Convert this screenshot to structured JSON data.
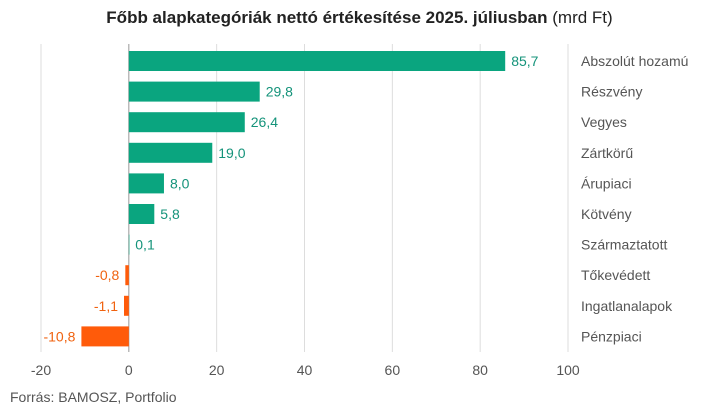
{
  "title": "Főbb alapkategóriák nettó értékesítése 2025. júliusban",
  "title_unit": "(mrd Ft)",
  "source": "Forrás: BAMOSZ, Portfolio",
  "colors": {
    "positive": "#0aa57f",
    "negative": "#ff5b0a",
    "positive_label": "#14937a",
    "negative_label": "#f0620f",
    "grid": "#dddddd",
    "zero_line": "#999999",
    "text": "#555555"
  },
  "chart_data": {
    "type": "bar",
    "orientation": "horizontal",
    "title": "Főbb alapkategóriák nettó értékesítése 2025. júliusban (mrd Ft)",
    "categories": [
      "Abszolút hozamú",
      "Részvény",
      "Vegyes",
      "Zártkörű",
      "Árupiaci",
      "Kötvény",
      "Származtatott",
      "Tőkevédett",
      "Ingatlanalapok",
      "Pénzpiaci"
    ],
    "values": [
      85.7,
      29.8,
      26.4,
      19.0,
      8.0,
      5.8,
      0.1,
      -0.8,
      -1.1,
      -10.8
    ],
    "value_labels": [
      "85,7",
      "29,8",
      "26,4",
      "19,0",
      "8,0",
      "5,8",
      "0,1",
      "-0,8",
      "-1,1",
      "-10,8"
    ],
    "xlim": [
      -20,
      100
    ],
    "xticks": [
      -20,
      0,
      20,
      40,
      60,
      80,
      100
    ],
    "xtick_labels": [
      "-20",
      "0",
      "20",
      "40",
      "60",
      "80",
      "100"
    ],
    "grid": true,
    "category_labels_position": "right"
  }
}
